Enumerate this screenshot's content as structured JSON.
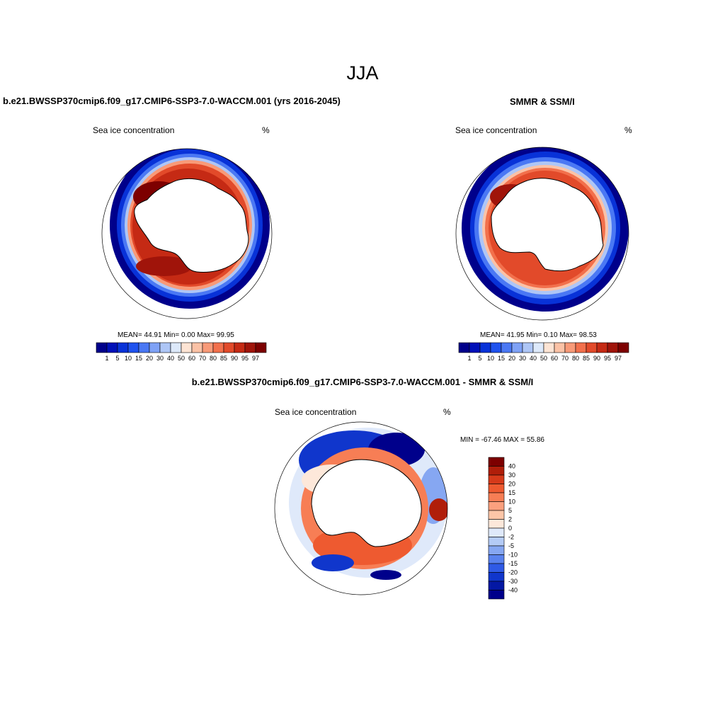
{
  "title": "JJA",
  "panels": [
    {
      "title": "b.e21.BWSSP370cmip6.f09_g17.CMIP6-SSP3-7.0-WACCM.001 (yrs 2016-2045)",
      "variable": "Sea ice concentration",
      "units": "%",
      "stats": "MEAN=  44.91  Min=   0.00  Max=  99.95"
    },
    {
      "title": "SMMR & SSM/I",
      "variable": "Sea ice concentration",
      "units": "%",
      "stats": "MEAN=  41.95  Min=   0.10  Max=  98.53"
    },
    {
      "title": "b.e21.BWSSP370cmip6.f09_g17.CMIP6-SSP3-7.0-WACCM.001 - SMMR & SSM/I",
      "variable": "Sea ice concentration",
      "units": "%",
      "stats": "MIN = -67.46 MAX =  55.86"
    }
  ],
  "colorbar_conc": {
    "labels": [
      "1",
      "5",
      "10",
      "15",
      "20",
      "30",
      "40",
      "50",
      "60",
      "70",
      "80",
      "85",
      "90",
      "95",
      "97"
    ],
    "colors": [
      "#00008b",
      "#0010b8",
      "#0832d8",
      "#1f52ee",
      "#4a78f4",
      "#7fa2f6",
      "#aec6f6",
      "#dde9fa",
      "#fde4d4",
      "#fbc2a6",
      "#f89a78",
      "#f2704c",
      "#e24a2a",
      "#c52a14",
      "#a0140a",
      "#7d0000"
    ]
  },
  "colorbar_diff": {
    "labels": [
      "40",
      "30",
      "20",
      "15",
      "10",
      "5",
      "2",
      "0",
      "-2",
      "-5",
      "-10",
      "-15",
      "-20",
      "-30",
      "-40"
    ],
    "colors": [
      "#7d0000",
      "#b01e0a",
      "#d63a1a",
      "#ee5a30",
      "#f77e55",
      "#fba07e",
      "#fdc6a8",
      "#fde8da",
      "#dfe9fa",
      "#b4cbf6",
      "#86a7f2",
      "#5a82ee",
      "#2f5ae6",
      "#1036cc",
      "#0418a4",
      "#00008b"
    ]
  },
  "colors": {
    "land": "#ffffff",
    "coast": "#000000"
  }
}
